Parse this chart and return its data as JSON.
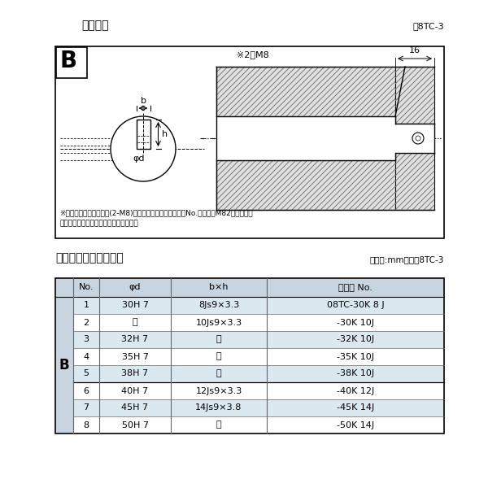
{
  "bg_color": "#ffffff",
  "section1_title": "軸穴形状",
  "section1_fig_ref": "図8TC-3",
  "section2_title": "軸穴形状コード一覧表",
  "section2_unit": "（単位:mm）　表8TC-3",
  "note_line1": "※セットボルト用タップ(2-M8)が必要な場合は右記コードNo.の末尾にM82を付ける。",
  "note_line2": "（セットボルトは付属されています。）",
  "label_b_large": "B",
  "label_b_dim": "b",
  "label_h_dim": "h",
  "label_phi_d": "φd",
  "label_m8": "※2－M8",
  "label_16": "16",
  "table_header": [
    "No.",
    "φd",
    "b×h",
    "コード No."
  ],
  "table_col_b_label": "B",
  "table_rows": [
    [
      "1",
      "30H 7",
      "8Js9×3.3",
      "08TC-30K 8 J"
    ],
    [
      "2",
      "〃",
      "10Js9×3.3",
      "-30K 10J"
    ],
    [
      "3",
      "32H 7",
      "〃",
      "-32K 10J"
    ],
    [
      "4",
      "35H 7",
      "〃",
      "-35K 10J"
    ],
    [
      "5",
      "38H 7",
      "〃",
      "-38K 10J"
    ],
    [
      "6",
      "40H 7",
      "12Js9×3.3",
      "-40K 12J"
    ],
    [
      "7",
      "45H 7",
      "14Js9×3.8",
      "-45K 14J"
    ],
    [
      "8",
      "50H 7",
      "〃",
      "-50K 14J"
    ]
  ],
  "header_bg": "#c8d4e0",
  "row_bg_odd": "#dce8f0",
  "row_bg_even": "#ffffff",
  "hatch_color": "#888888",
  "table_line_color": "#666666"
}
